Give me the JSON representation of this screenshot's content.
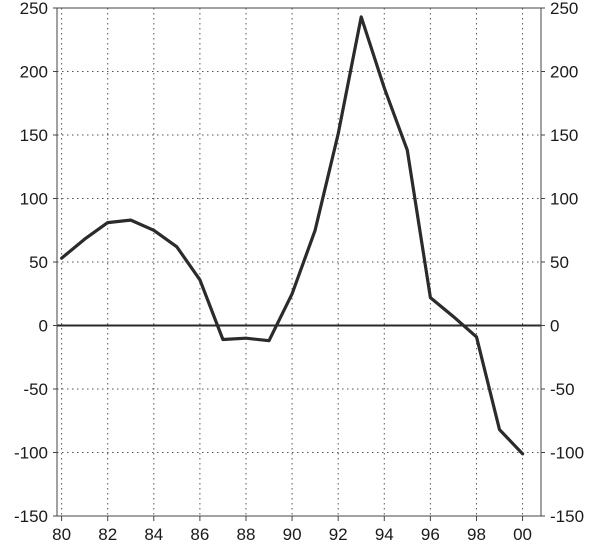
{
  "chart_data": {
    "type": "line",
    "title": "",
    "xlabel": "",
    "ylabel": "",
    "x": [
      1980,
      1981,
      1982,
      1983,
      1984,
      1985,
      1986,
      1987,
      1988,
      1989,
      1990,
      1991,
      1992,
      1993,
      1994,
      1995,
      1996,
      1997,
      1998,
      1999,
      2000
    ],
    "series": [
      {
        "values": [
          53,
          68,
          81,
          83,
          75,
          62,
          36,
          -11,
          -10,
          -12,
          25,
          75,
          151,
          243,
          187,
          138,
          22,
          7,
          -9,
          -82,
          -101
        ]
      }
    ],
    "xlim": [
      1979.8,
      2000.8
    ],
    "ylim": [
      -150,
      250
    ],
    "x_ticks": [
      1980,
      1982,
      1984,
      1986,
      1988,
      1990,
      1992,
      1994,
      1996,
      1998,
      2000
    ],
    "x_tick_labels": [
      "80",
      "82",
      "84",
      "86",
      "88",
      "90",
      "92",
      "94",
      "96",
      "98",
      "00"
    ],
    "y_ticks": [
      -150,
      -100,
      -50,
      0,
      50,
      100,
      150,
      200,
      250
    ],
    "y_tick_labels_left": [
      "-150",
      "-100",
      "-50",
      "0",
      "50",
      "100",
      "150",
      "200",
      "250"
    ],
    "y_tick_labels_right": [
      "-150",
      "-100",
      "-50",
      "0",
      "50",
      "100",
      "150",
      "200",
      "250"
    ],
    "grid": true,
    "zero_line": true,
    "colors": {
      "line": "#2b2b2b",
      "grid": "#555555",
      "background": "#ffffff"
    }
  }
}
